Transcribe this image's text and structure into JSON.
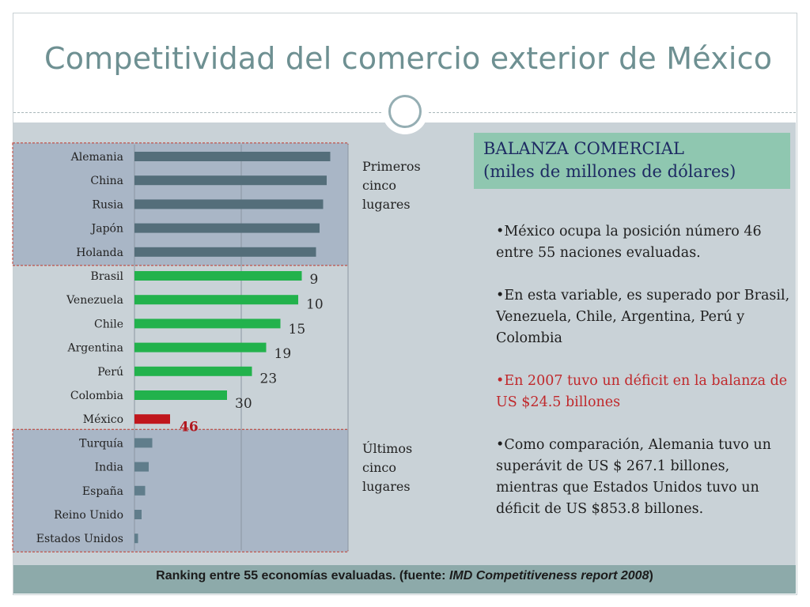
{
  "title": "Competitividad del comercio exterior de México",
  "top_label": [
    "Primeros",
    "cinco",
    "lugares"
  ],
  "bottom_label": [
    "Últimos",
    "cinco",
    "lugares"
  ],
  "balanza": {
    "line1": "BALANZA COMERCIAL",
    "line2": "(miles de millones de dólares)"
  },
  "bullets": [
    "•México ocupa la posición número 46 entre 55 naciones evaluadas.",
    "•En esta variable, es superado por Brasil, Venezuela, Chile, Argentina, Perú y Colombia",
    "•En 2007 tuvo un déficit en la balanza de US $24.5 billones",
    "•Como comparación, Alemania tuvo un superávit de US $ 267.1 billones, mientras que Estados Unidos tuvo un déficit de US $853.8 billones."
  ],
  "footer": {
    "prefix": "Ranking entre 55 economías evaluadas.  (fuente: ",
    "source": "IMD Competitiveness report 2008",
    "suffix": ")"
  },
  "colors": {
    "top_five": "#546e7a",
    "ahead_of_mexico": "#22b24c",
    "mexico": "#c0161c",
    "bottom_five": "#607d8b",
    "highlight_box": "#a9b6c6",
    "rank_label": "#2a2a2a",
    "mexico_rank_label": "#b2181f"
  },
  "chart_data": {
    "type": "bar",
    "orientation": "horizontal",
    "categories": [
      "Alemania",
      "China",
      "Rusia",
      "Japón",
      "Holanda",
      "Brasil",
      "Venezuela",
      "Chile",
      "Argentina",
      "Perú",
      "Colombia",
      "México",
      "Turquía",
      "India",
      "España",
      "Reino Unido",
      "Estados Unidos"
    ],
    "values": [
      55,
      54,
      53,
      52,
      51,
      47,
      46,
      41,
      37,
      33,
      26,
      10,
      5,
      4,
      3,
      2,
      1
    ],
    "data_labels": [
      "",
      "",
      "",
      "",
      "",
      "9",
      "10",
      "15",
      "19",
      "23",
      "30",
      "46",
      "",
      "",
      "",
      "",
      ""
    ],
    "groups": [
      "top_five",
      "top_five",
      "top_five",
      "top_five",
      "top_five",
      "ahead_of_mexico",
      "ahead_of_mexico",
      "ahead_of_mexico",
      "ahead_of_mexico",
      "ahead_of_mexico",
      "ahead_of_mexico",
      "mexico",
      "bottom_five",
      "bottom_five",
      "bottom_five",
      "bottom_five",
      "bottom_five"
    ],
    "xlim": [
      0,
      60
    ],
    "grid": true,
    "legend": "none",
    "title": "",
    "xlabel": "",
    "ylabel": ""
  }
}
